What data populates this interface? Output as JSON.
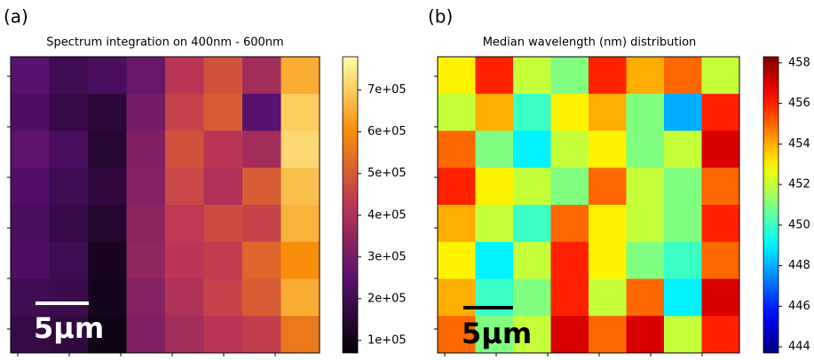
{
  "chart_data": [
    {
      "type": "heatmap",
      "label": "(a)",
      "title": "Spectrum integration on 400nm - 600nm",
      "colormap": "inferno",
      "clim": [
        70000,
        780000
      ],
      "cticks": [
        {
          "value": 100000,
          "label": "1e+05"
        },
        {
          "value": 200000,
          "label": "2e+05"
        },
        {
          "value": 300000,
          "label": "3e+05"
        },
        {
          "value": 400000,
          "label": "4e+05"
        },
        {
          "value": 500000,
          "label": "5e+05"
        },
        {
          "value": 600000,
          "label": "6e+05"
        },
        {
          "value": 700000,
          "label": "7e+05"
        }
      ],
      "scale_bar": "5μm",
      "values": [
        [
          250000,
          200000,
          220000,
          280000,
          420000,
          480000,
          380000,
          650000
        ],
        [
          230000,
          180000,
          160000,
          300000,
          450000,
          500000,
          250000,
          700000
        ],
        [
          260000,
          220000,
          150000,
          320000,
          480000,
          420000,
          380000,
          720000
        ],
        [
          240000,
          200000,
          170000,
          330000,
          460000,
          400000,
          500000,
          680000
        ],
        [
          220000,
          180000,
          140000,
          340000,
          430000,
          470000,
          450000,
          660000
        ],
        [
          230000,
          200000,
          120000,
          350000,
          420000,
          440000,
          520000,
          600000
        ],
        [
          200000,
          190000,
          110000,
          330000,
          400000,
          450000,
          500000,
          650000
        ],
        [
          180000,
          170000,
          100000,
          320000,
          380000,
          420000,
          440000,
          560000
        ]
      ]
    },
    {
      "type": "heatmap",
      "label": "(b)",
      "title": "Median wavelength (nm) distribution",
      "colormap": "jet",
      "clim": [
        443.7,
        458.3
      ],
      "cticks": [
        444,
        446,
        448,
        450,
        452,
        454,
        456,
        458
      ],
      "scale_bar": "5μm",
      "values": [
        [
          453,
          456,
          452,
          451,
          456,
          454,
          455,
          452
        ],
        [
          452,
          454,
          450,
          453,
          454,
          451,
          448,
          456
        ],
        [
          455,
          451,
          449,
          452,
          453,
          451,
          452,
          457
        ],
        [
          456,
          453,
          452,
          451,
          455,
          452,
          451,
          455
        ],
        [
          454,
          452,
          450,
          455,
          453,
          452,
          451,
          456
        ],
        [
          453,
          449,
          452,
          456,
          453,
          451,
          450,
          455
        ],
        [
          454,
          450,
          451,
          456,
          452,
          455,
          449,
          457
        ],
        [
          455,
          451,
          452,
          457,
          455,
          457,
          452,
          456
        ]
      ]
    }
  ]
}
